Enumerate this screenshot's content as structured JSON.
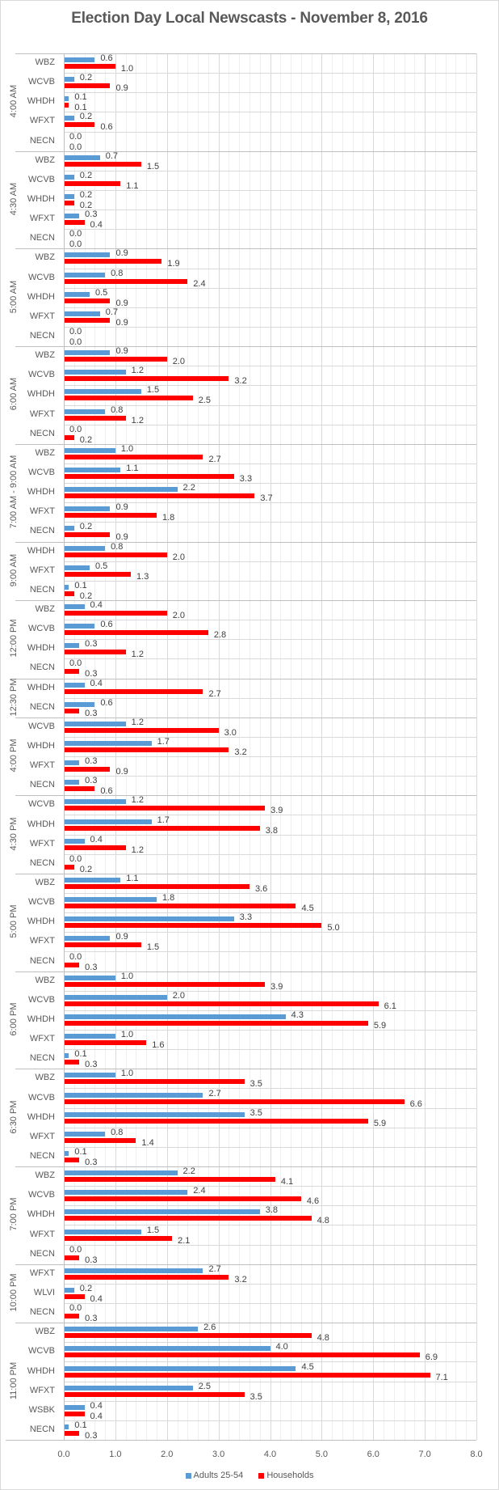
{
  "chart_data": {
    "type": "bar",
    "orientation": "horizontal",
    "title": "Election Day Local Newscasts - November 8, 2016",
    "xlabel": "",
    "ylabel": "",
    "xlim": [
      0,
      8
    ],
    "x_ticks": [
      "0.0",
      "1.0",
      "2.0",
      "3.0",
      "4.0",
      "5.0",
      "6.0",
      "7.0",
      "8.0"
    ],
    "grid": true,
    "legend_position": "bottom",
    "series_names": [
      "Adults 25-54",
      "Households"
    ],
    "series_colors": [
      "#5b9bd5",
      "#ff0000"
    ],
    "groups": [
      {
        "label": "4:00 AM",
        "rows": [
          {
            "station": "WBZ",
            "adults": 0.6,
            "households": 1.0
          },
          {
            "station": "WCVB",
            "adults": 0.2,
            "households": 0.9
          },
          {
            "station": "WHDH",
            "adults": 0.1,
            "households": 0.1
          },
          {
            "station": "WFXT",
            "adults": 0.2,
            "households": 0.6
          },
          {
            "station": "NECN",
            "adults": 0.0,
            "households": 0.0
          }
        ]
      },
      {
        "label": "4:30 AM",
        "rows": [
          {
            "station": "WBZ",
            "adults": 0.7,
            "households": 1.5
          },
          {
            "station": "WCVB",
            "adults": 0.2,
            "households": 1.1
          },
          {
            "station": "WHDH",
            "adults": 0.2,
            "households": 0.2
          },
          {
            "station": "WFXT",
            "adults": 0.3,
            "households": 0.4
          },
          {
            "station": "NECN",
            "adults": 0.0,
            "households": 0.0
          }
        ]
      },
      {
        "label": "5:00 AM",
        "rows": [
          {
            "station": "WBZ",
            "adults": 0.9,
            "households": 1.9
          },
          {
            "station": "WCVB",
            "adults": 0.8,
            "households": 2.4
          },
          {
            "station": "WHDH",
            "adults": 0.5,
            "households": 0.9
          },
          {
            "station": "WFXT",
            "adults": 0.7,
            "households": 0.9
          },
          {
            "station": "NECN",
            "adults": 0.0,
            "households": 0.0
          }
        ]
      },
      {
        "label": "6:00 AM",
        "rows": [
          {
            "station": "WBZ",
            "adults": 0.9,
            "households": 2.0
          },
          {
            "station": "WCVB",
            "adults": 1.2,
            "households": 3.2
          },
          {
            "station": "WHDH",
            "adults": 1.5,
            "households": 2.5
          },
          {
            "station": "WFXT",
            "adults": 0.8,
            "households": 1.2
          },
          {
            "station": "NECN",
            "adults": 0.0,
            "households": 0.2
          }
        ]
      },
      {
        "label": "7:00 AM - 9:00 AM",
        "rows": [
          {
            "station": "WBZ",
            "adults": 1.0,
            "households": 2.7
          },
          {
            "station": "WCVB",
            "adults": 1.1,
            "households": 3.3
          },
          {
            "station": "WHDH",
            "adults": 2.2,
            "households": 3.7
          },
          {
            "station": "WFXT",
            "adults": 0.9,
            "households": 1.8
          },
          {
            "station": "NECN",
            "adults": 0.2,
            "households": 0.9
          }
        ]
      },
      {
        "label": "9:00 AM",
        "rows": [
          {
            "station": "WHDH",
            "adults": 0.8,
            "households": 2.0
          },
          {
            "station": "WFXT",
            "adults": 0.5,
            "households": 1.3
          },
          {
            "station": "NECN",
            "adults": 0.1,
            "households": 0.2
          }
        ]
      },
      {
        "label": "12:00 PM",
        "rows": [
          {
            "station": "WBZ",
            "adults": 0.4,
            "households": 2.0
          },
          {
            "station": "WCVB",
            "adults": 0.6,
            "households": 2.8
          },
          {
            "station": "WHDH",
            "adults": 0.3,
            "households": 1.2
          },
          {
            "station": "NECN",
            "adults": 0.0,
            "households": 0.3
          }
        ]
      },
      {
        "label": "12:30 PM",
        "rows": [
          {
            "station": "WHDH",
            "adults": 0.4,
            "households": 2.7
          },
          {
            "station": "NECN",
            "adults": 0.6,
            "households": 0.3
          }
        ]
      },
      {
        "label": "4:00 PM",
        "rows": [
          {
            "station": "WCVB",
            "adults": 1.2,
            "households": 3.0
          },
          {
            "station": "WHDH",
            "adults": 1.7,
            "households": 3.2
          },
          {
            "station": "WFXT",
            "adults": 0.3,
            "households": 0.9
          },
          {
            "station": "NECN",
            "adults": 0.3,
            "households": 0.6
          }
        ]
      },
      {
        "label": "4:30 PM",
        "rows": [
          {
            "station": "WCVB",
            "adults": 1.2,
            "households": 3.9
          },
          {
            "station": "WHDH",
            "adults": 1.7,
            "households": 3.8
          },
          {
            "station": "WFXT",
            "adults": 0.4,
            "households": 1.2
          },
          {
            "station": "NECN",
            "adults": 0.0,
            "households": 0.2
          }
        ]
      },
      {
        "label": "5:00 PM",
        "rows": [
          {
            "station": "WBZ",
            "adults": 1.1,
            "households": 3.6
          },
          {
            "station": "WCVB",
            "adults": 1.8,
            "households": 4.5
          },
          {
            "station": "WHDH",
            "adults": 3.3,
            "households": 5.0
          },
          {
            "station": "WFXT",
            "adults": 0.9,
            "households": 1.5
          },
          {
            "station": "NECN",
            "adults": 0.0,
            "households": 0.3
          }
        ]
      },
      {
        "label": "6:00 PM",
        "rows": [
          {
            "station": "WBZ",
            "adults": 1.0,
            "households": 3.9
          },
          {
            "station": "WCVB",
            "adults": 2.0,
            "households": 6.1
          },
          {
            "station": "WHDH",
            "adults": 4.3,
            "households": 5.9
          },
          {
            "station": "WFXT",
            "adults": 1.0,
            "households": 1.6
          },
          {
            "station": "NECN",
            "adults": 0.1,
            "households": 0.3
          }
        ]
      },
      {
        "label": "6:30 PM",
        "rows": [
          {
            "station": "WBZ",
            "adults": 1.0,
            "households": 3.5
          },
          {
            "station": "WCVB",
            "adults": 2.7,
            "households": 6.6
          },
          {
            "station": "WHDH",
            "adults": 3.5,
            "households": 5.9
          },
          {
            "station": "WFXT",
            "adults": 0.8,
            "households": 1.4
          },
          {
            "station": "NECN",
            "adults": 0.1,
            "households": 0.3
          }
        ]
      },
      {
        "label": "7:00 PM",
        "rows": [
          {
            "station": "WBZ",
            "adults": 2.2,
            "households": 4.1
          },
          {
            "station": "WCVB",
            "adults": 2.4,
            "households": 4.6
          },
          {
            "station": "WHDH",
            "adults": 3.8,
            "households": 4.8
          },
          {
            "station": "WFXT",
            "adults": 1.5,
            "households": 2.1
          },
          {
            "station": "NECN",
            "adults": 0.0,
            "households": 0.3
          }
        ]
      },
      {
        "label": "10:00 PM",
        "rows": [
          {
            "station": "WFXT",
            "adults": 2.7,
            "households": 3.2
          },
          {
            "station": "WLVI",
            "adults": 0.2,
            "households": 0.4
          },
          {
            "station": "NECN",
            "adults": 0.0,
            "households": 0.3
          }
        ]
      },
      {
        "label": "11:00 PM",
        "rows": [
          {
            "station": "WBZ",
            "adults": 2.6,
            "households": 4.8
          },
          {
            "station": "WCVB",
            "adults": 4.0,
            "households": 6.9
          },
          {
            "station": "WHDH",
            "adults": 4.5,
            "households": 7.1
          },
          {
            "station": "WFXT",
            "adults": 2.5,
            "households": 3.5
          },
          {
            "station": "WSBK",
            "adults": 0.4,
            "households": 0.4
          },
          {
            "station": "NECN",
            "adults": 0.1,
            "households": 0.3
          }
        ]
      }
    ]
  }
}
